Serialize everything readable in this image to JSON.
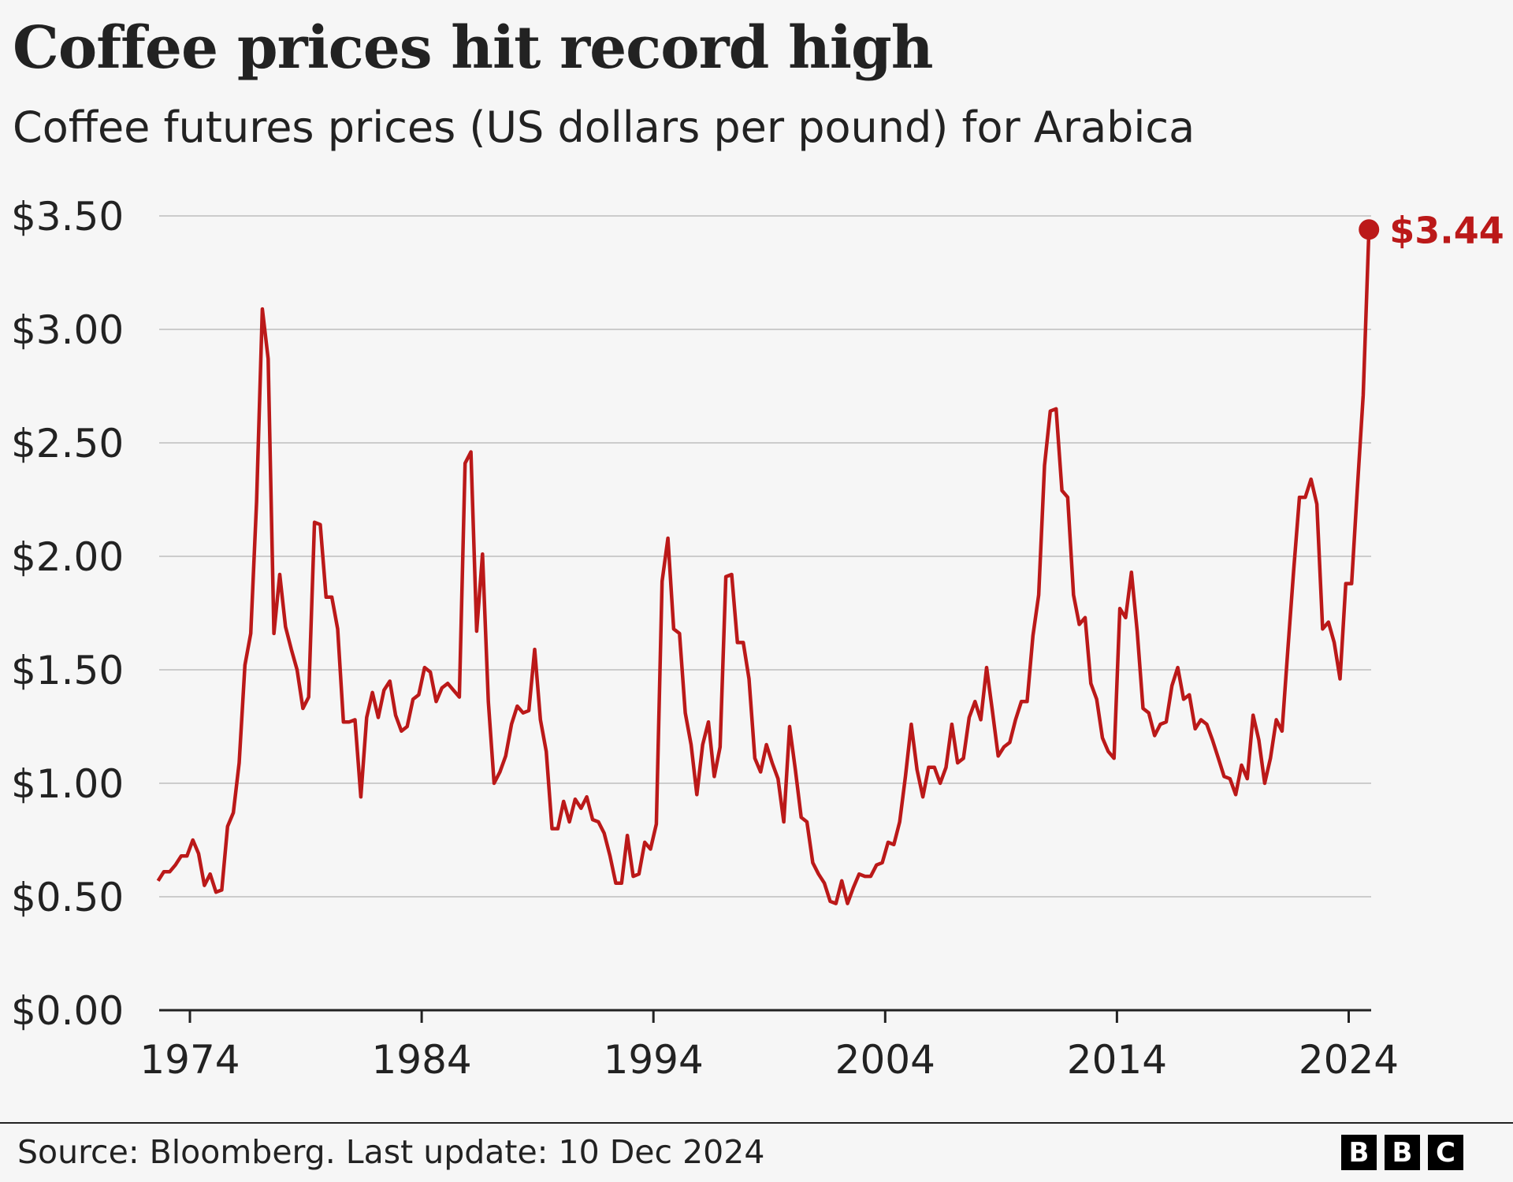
{
  "header": {
    "title": "Coffee prices hit record high",
    "subtitle": "Coffee futures prices (US dollars per pound) for Arabica"
  },
  "footer": {
    "source": "Source: Bloomberg. Last update: 10 Dec 2024",
    "logo": [
      "B",
      "B",
      "C"
    ]
  },
  "chart_data": {
    "type": "line",
    "title": "Coffee prices hit record high",
    "subtitle": "Coffee futures prices (US dollars per pound) for Arabica",
    "frequency": "quarterly",
    "start": "1972-Q3",
    "end": "2024-Q4",
    "ylim": [
      0,
      3.5
    ],
    "y_ticks": [
      0,
      0.5,
      1.0,
      1.5,
      2.0,
      2.5,
      3.0,
      3.5
    ],
    "y_tick_labels": [
      "$0.00",
      "$0.50",
      "$1.00",
      "$1.50",
      "$2.00",
      "$2.50",
      "$3.00",
      "$3.50"
    ],
    "x_ticks": [
      1974,
      1984,
      1994,
      2004,
      2014,
      2024
    ],
    "x_tick_labels": [
      "1974",
      "1984",
      "1994",
      "2004",
      "2014",
      "2024"
    ],
    "grid": "horizontal",
    "line_color": "#bb1919",
    "annotation": {
      "label": "$3.44",
      "value": 3.44,
      "position": "last point"
    },
    "values": [
      0.57,
      0.61,
      0.61,
      0.64,
      0.68,
      0.68,
      0.75,
      0.69,
      0.55,
      0.6,
      0.52,
      0.53,
      0.81,
      0.87,
      1.09,
      1.52,
      1.66,
      2.24,
      3.09,
      2.87,
      1.66,
      1.92,
      1.69,
      1.59,
      1.5,
      1.33,
      1.38,
      2.15,
      2.14,
      1.82,
      1.82,
      1.68,
      1.27,
      1.27,
      1.28,
      0.94,
      1.29,
      1.4,
      1.29,
      1.41,
      1.45,
      1.3,
      1.23,
      1.25,
      1.37,
      1.39,
      1.51,
      1.49,
      1.36,
      1.42,
      1.44,
      1.41,
      1.38,
      2.41,
      2.46,
      1.67,
      2.01,
      1.36,
      1.0,
      1.05,
      1.12,
      1.26,
      1.34,
      1.31,
      1.32,
      1.59,
      1.28,
      1.14,
      0.8,
      0.8,
      0.92,
      0.83,
      0.93,
      0.89,
      0.94,
      0.84,
      0.83,
      0.78,
      0.68,
      0.56,
      0.56,
      0.77,
      0.59,
      0.6,
      0.74,
      0.71,
      0.82,
      1.89,
      2.08,
      1.68,
      1.66,
      1.31,
      1.17,
      0.95,
      1.17,
      1.27,
      1.03,
      1.16,
      1.91,
      1.92,
      1.62,
      1.62,
      1.46,
      1.11,
      1.05,
      1.17,
      1.09,
      1.02,
      0.83,
      1.25,
      1.06,
      0.85,
      0.83,
      0.65,
      0.6,
      0.56,
      0.48,
      0.47,
      0.57,
      0.47,
      0.54,
      0.6,
      0.59,
      0.59,
      0.64,
      0.65,
      0.74,
      0.73,
      0.83,
      1.03,
      1.26,
      1.06,
      0.94,
      1.07,
      1.07,
      1.0,
      1.07,
      1.26,
      1.09,
      1.11,
      1.29,
      1.36,
      1.28,
      1.51,
      1.32,
      1.12,
      1.16,
      1.18,
      1.28,
      1.36,
      1.36,
      1.65,
      1.83,
      2.4,
      2.64,
      2.65,
      2.29,
      2.26,
      1.83,
      1.7,
      1.73,
      1.44,
      1.37,
      1.2,
      1.14,
      1.11,
      1.77,
      1.73,
      1.93,
      1.67,
      1.33,
      1.31,
      1.21,
      1.26,
      1.27,
      1.43,
      1.51,
      1.37,
      1.39,
      1.24,
      1.28,
      1.26,
      1.19,
      1.11,
      1.03,
      1.02,
      0.95,
      1.08,
      1.02,
      1.3,
      1.19,
      1.0,
      1.11,
      1.28,
      1.23,
      1.59,
      1.94,
      2.26,
      2.26,
      2.34,
      2.23,
      1.68,
      1.71,
      1.62,
      1.46,
      1.88,
      1.88,
      2.3,
      2.71,
      3.44
    ]
  }
}
